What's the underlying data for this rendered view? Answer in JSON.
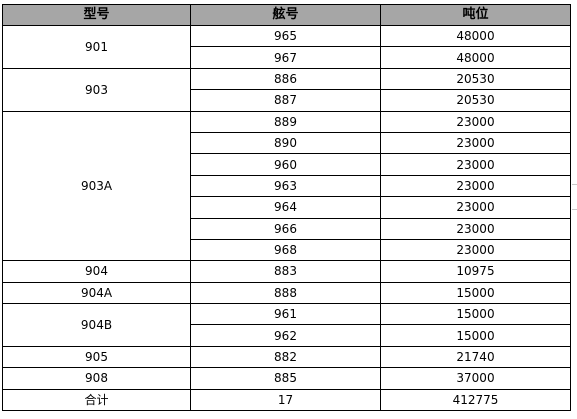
{
  "table": {
    "headers": [
      "型号",
      "舷号",
      "吨位"
    ],
    "groups": [
      {
        "model": "901",
        "ships": [
          {
            "hull": "965",
            "tonnage": "48000"
          },
          {
            "hull": "967",
            "tonnage": "48000"
          }
        ]
      },
      {
        "model": "903",
        "ships": [
          {
            "hull": "886",
            "tonnage": "20530"
          },
          {
            "hull": "887",
            "tonnage": "20530"
          }
        ]
      },
      {
        "model": "903A",
        "ships": [
          {
            "hull": "889",
            "tonnage": "23000"
          },
          {
            "hull": "890",
            "tonnage": "23000"
          },
          {
            "hull": "960",
            "tonnage": "23000"
          },
          {
            "hull": "963",
            "tonnage": "23000"
          },
          {
            "hull": "964",
            "tonnage": "23000"
          },
          {
            "hull": "966",
            "tonnage": "23000"
          },
          {
            "hull": "968",
            "tonnage": "23000"
          }
        ]
      },
      {
        "model": "904",
        "ships": [
          {
            "hull": "883",
            "tonnage": "10975"
          }
        ]
      },
      {
        "model": "904A",
        "ships": [
          {
            "hull": "888",
            "tonnage": "15000"
          }
        ]
      },
      {
        "model": "904B",
        "ships": [
          {
            "hull": "961",
            "tonnage": "15000"
          },
          {
            "hull": "962",
            "tonnage": "15000"
          }
        ]
      },
      {
        "model": "905",
        "ships": [
          {
            "hull": "882",
            "tonnage": "21740"
          }
        ]
      },
      {
        "model": "908",
        "ships": [
          {
            "hull": "885",
            "tonnage": "37000"
          }
        ]
      }
    ],
    "total": {
      "label": "合计",
      "count": "17",
      "tonnage": "412775"
    }
  },
  "colors": {
    "header_bg": "#a6a6a6",
    "border": "#000000"
  }
}
